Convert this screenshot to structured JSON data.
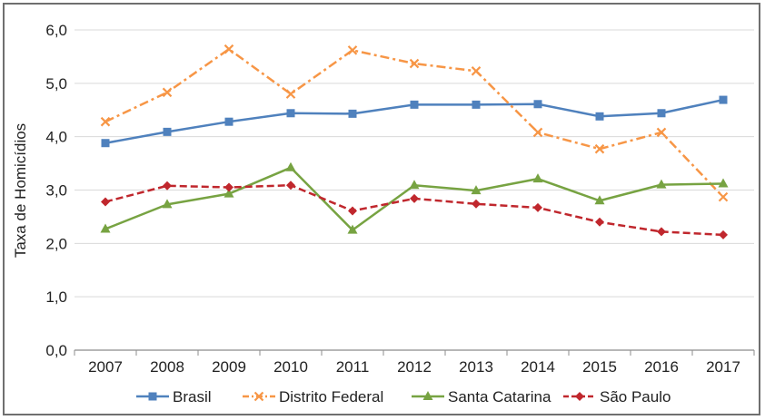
{
  "chart_data": {
    "type": "line",
    "ylabel": "Taxa de Homicídios",
    "xlabel": "",
    "ylim": [
      0,
      6
    ],
    "yticks": [
      "0,0",
      "1,0",
      "2,0",
      "3,0",
      "4,0",
      "5,0",
      "6,0"
    ],
    "categories": [
      "2007",
      "2008",
      "2009",
      "2010",
      "2011",
      "2012",
      "2013",
      "2014",
      "2015",
      "2016",
      "2017"
    ],
    "grid": true,
    "legend_position": "bottom",
    "series": [
      {
        "name": "Brasil",
        "color": "#4f81bd",
        "marker": "square",
        "dash": "solid",
        "values": [
          3.88,
          4.09,
          4.28,
          4.44,
          4.43,
          4.6,
          4.6,
          4.61,
          4.38,
          4.44,
          4.69
        ]
      },
      {
        "name": "Distrito Federal",
        "color": "#f79646",
        "marker": "x",
        "dash": "dashdot",
        "values": [
          4.28,
          4.83,
          5.64,
          4.8,
          5.62,
          5.37,
          5.23,
          4.08,
          3.77,
          4.08,
          2.87
        ]
      },
      {
        "name": "Santa Catarina",
        "color": "#77a342",
        "marker": "triangle",
        "dash": "solid",
        "values": [
          2.27,
          2.73,
          2.93,
          3.42,
          2.25,
          3.09,
          2.99,
          3.21,
          2.8,
          3.1,
          3.12
        ]
      },
      {
        "name": "São Paulo",
        "color": "#c0272d",
        "marker": "diamond",
        "dash": "dashed",
        "values": [
          2.78,
          3.08,
          3.05,
          3.09,
          2.61,
          2.84,
          2.74,
          2.67,
          2.4,
          2.22,
          2.16
        ]
      }
    ]
  }
}
